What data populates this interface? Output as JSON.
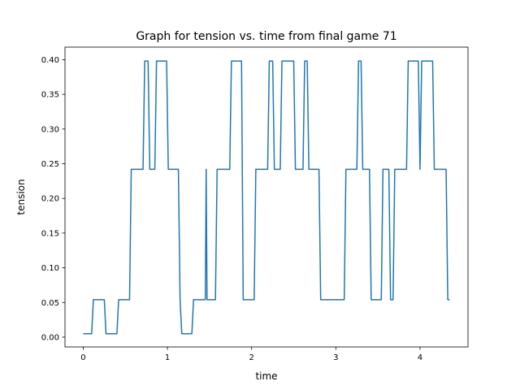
{
  "chart_data": {
    "type": "line",
    "title": "Graph for tension vs. time from final game 71",
    "xlabel": "time",
    "ylabel": "tension",
    "xlim": [
      -0.217,
      4.57
    ],
    "ylim": [
      -0.0141,
      0.4181
    ],
    "xticks": [
      0,
      1,
      2,
      3,
      4
    ],
    "xtick_labels": [
      "0",
      "1",
      "2",
      "3",
      "4"
    ],
    "yticks": [
      0.0,
      0.05,
      0.1,
      0.15,
      0.2,
      0.25,
      0.3,
      0.35,
      0.4
    ],
    "ytick_labels": [
      "0.00",
      "0.05",
      "0.10",
      "0.15",
      "0.20",
      "0.25",
      "0.30",
      "0.35",
      "0.40"
    ],
    "grid": false,
    "series": [
      {
        "color": "#1f77b4",
        "x": [
          0.0,
          0.1,
          0.12,
          0.25,
          0.27,
          0.4,
          0.42,
          0.55,
          0.57,
          0.71,
          0.73,
          0.77,
          0.79,
          0.85,
          0.87,
          0.99,
          1.01,
          1.13,
          1.15,
          1.17,
          1.29,
          1.31,
          1.45,
          1.46,
          1.47,
          1.57,
          1.59,
          1.74,
          1.76,
          1.88,
          1.9,
          2.03,
          2.05,
          2.19,
          2.21,
          2.25,
          2.27,
          2.34,
          2.36,
          2.5,
          2.52,
          2.61,
          2.63,
          2.66,
          2.68,
          2.8,
          2.82,
          3.1,
          3.12,
          3.25,
          3.27,
          3.3,
          3.32,
          3.4,
          3.42,
          3.54,
          3.56,
          3.63,
          3.65,
          3.68,
          3.7,
          3.84,
          3.86,
          3.98,
          4.0,
          4.02,
          4.04,
          4.15,
          4.17,
          4.31,
          4.33,
          4.35
        ],
        "y": [
          0.005,
          0.005,
          0.054,
          0.054,
          0.005,
          0.005,
          0.054,
          0.054,
          0.242,
          0.242,
          0.398,
          0.398,
          0.242,
          0.242,
          0.398,
          0.398,
          0.242,
          0.242,
          0.054,
          0.005,
          0.005,
          0.054,
          0.054,
          0.242,
          0.054,
          0.054,
          0.242,
          0.242,
          0.398,
          0.398,
          0.054,
          0.054,
          0.242,
          0.242,
          0.398,
          0.398,
          0.242,
          0.242,
          0.398,
          0.398,
          0.242,
          0.242,
          0.398,
          0.398,
          0.242,
          0.242,
          0.054,
          0.054,
          0.242,
          0.242,
          0.398,
          0.398,
          0.242,
          0.242,
          0.054,
          0.054,
          0.242,
          0.242,
          0.054,
          0.054,
          0.242,
          0.242,
          0.398,
          0.398,
          0.242,
          0.398,
          0.398,
          0.398,
          0.242,
          0.242,
          0.054,
          0.054
        ]
      }
    ]
  }
}
